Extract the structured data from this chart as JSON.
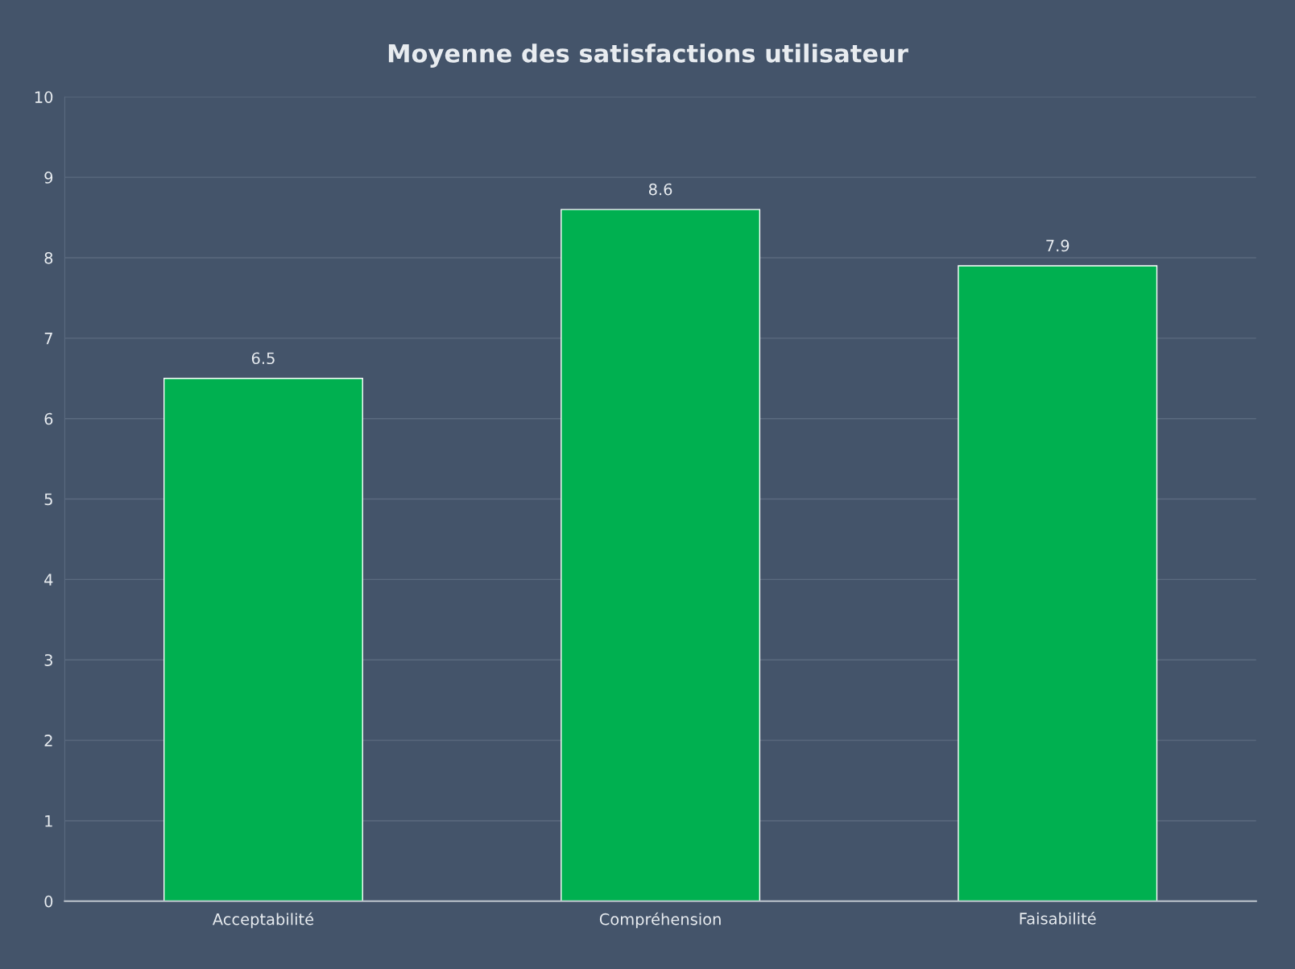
{
  "chart_data": {
    "type": "bar",
    "title": "Moyenne des satisfactions utilisateur",
    "categories": [
      "Acceptabilité",
      "Compréhension",
      "Faisabilité"
    ],
    "values": [
      6.5,
      8.6,
      7.9
    ],
    "color": "#00b050",
    "ylim": [
      0,
      10
    ],
    "yticks": [
      0,
      1,
      2,
      3,
      4,
      5,
      6,
      7,
      8,
      9,
      10
    ],
    "grid": "y",
    "data_labels": true
  }
}
